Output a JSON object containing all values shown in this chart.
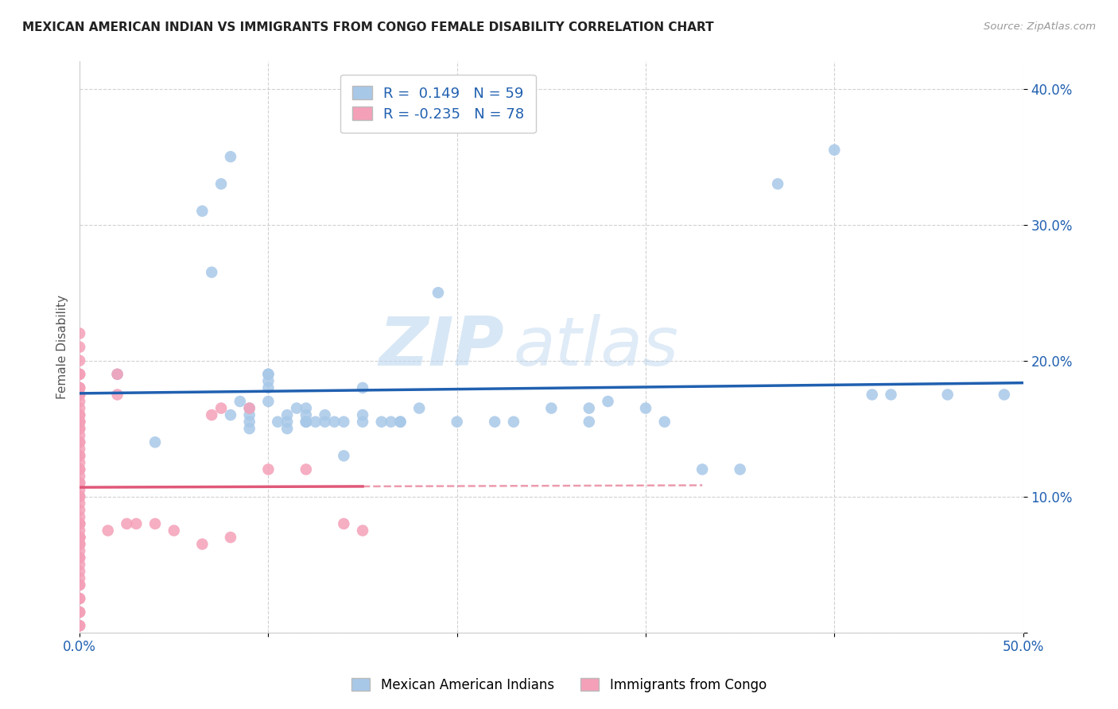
{
  "title": "MEXICAN AMERICAN INDIAN VS IMMIGRANTS FROM CONGO FEMALE DISABILITY CORRELATION CHART",
  "source": "Source: ZipAtlas.com",
  "ylabel": "Female Disability",
  "xlim": [
    0.0,
    0.5
  ],
  "ylim": [
    0.0,
    0.42
  ],
  "xticks": [
    0.0,
    0.1,
    0.2,
    0.3,
    0.4,
    0.5
  ],
  "yticks": [
    0.0,
    0.1,
    0.2,
    0.3,
    0.4
  ],
  "xtick_labels": [
    "0.0%",
    "",
    "",
    "",
    "",
    "50.0%"
  ],
  "ytick_labels_right": [
    "",
    "10.0%",
    "20.0%",
    "30.0%",
    "40.0%"
  ],
  "blue_R": 0.149,
  "blue_N": 59,
  "pink_R": -0.235,
  "pink_N": 78,
  "blue_color": "#a8c8e8",
  "pink_color": "#f4a0b8",
  "blue_line_color": "#2060b0",
  "pink_line_color": "#e05878",
  "pink_line_style": "solid",
  "watermark_zip": "ZIP",
  "watermark_atlas": "atlas",
  "legend_label_blue": "Mexican American Indians",
  "legend_label_pink": "Immigrants from Congo",
  "blue_scatter_x": [
    0.02,
    0.04,
    0.07,
    0.075,
    0.08,
    0.085,
    0.09,
    0.09,
    0.09,
    0.09,
    0.1,
    0.1,
    0.1,
    0.1,
    0.1,
    0.105,
    0.11,
    0.11,
    0.11,
    0.115,
    0.12,
    0.12,
    0.12,
    0.12,
    0.12,
    0.125,
    0.13,
    0.13,
    0.135,
    0.14,
    0.14,
    0.15,
    0.15,
    0.15,
    0.16,
    0.165,
    0.17,
    0.17,
    0.18,
    0.19,
    0.2,
    0.22,
    0.23,
    0.25,
    0.27,
    0.27,
    0.28,
    0.3,
    0.31,
    0.33,
    0.35,
    0.37,
    0.4,
    0.42,
    0.43,
    0.46,
    0.49,
    0.065,
    0.08
  ],
  "blue_scatter_y": [
    0.19,
    0.14,
    0.265,
    0.33,
    0.16,
    0.17,
    0.15,
    0.155,
    0.16,
    0.165,
    0.19,
    0.19,
    0.185,
    0.18,
    0.17,
    0.155,
    0.15,
    0.155,
    0.16,
    0.165,
    0.155,
    0.155,
    0.155,
    0.16,
    0.165,
    0.155,
    0.155,
    0.16,
    0.155,
    0.13,
    0.155,
    0.155,
    0.16,
    0.18,
    0.155,
    0.155,
    0.155,
    0.155,
    0.165,
    0.25,
    0.155,
    0.155,
    0.155,
    0.165,
    0.155,
    0.165,
    0.17,
    0.165,
    0.155,
    0.12,
    0.12,
    0.33,
    0.355,
    0.175,
    0.175,
    0.175,
    0.175,
    0.31,
    0.35
  ],
  "pink_scatter_x": [
    0.0,
    0.0,
    0.0,
    0.0,
    0.0,
    0.0,
    0.0,
    0.0,
    0.0,
    0.0,
    0.0,
    0.0,
    0.0,
    0.0,
    0.0,
    0.0,
    0.0,
    0.0,
    0.0,
    0.0,
    0.0,
    0.0,
    0.0,
    0.0,
    0.0,
    0.0,
    0.0,
    0.0,
    0.0,
    0.0,
    0.0,
    0.0,
    0.0,
    0.0,
    0.0,
    0.0,
    0.0,
    0.0,
    0.0,
    0.0,
    0.0,
    0.0,
    0.0,
    0.0,
    0.0,
    0.0,
    0.0,
    0.0,
    0.0,
    0.0,
    0.0,
    0.0,
    0.0,
    0.0,
    0.0,
    0.0,
    0.0,
    0.0,
    0.0,
    0.0,
    0.0,
    0.0,
    0.015,
    0.02,
    0.02,
    0.025,
    0.03,
    0.04,
    0.05,
    0.065,
    0.07,
    0.075,
    0.08,
    0.09,
    0.1,
    0.12,
    0.14,
    0.15
  ],
  "pink_scatter_y": [
    0.22,
    0.21,
    0.2,
    0.19,
    0.19,
    0.18,
    0.18,
    0.175,
    0.175,
    0.17,
    0.165,
    0.16,
    0.16,
    0.155,
    0.155,
    0.155,
    0.15,
    0.15,
    0.145,
    0.14,
    0.14,
    0.135,
    0.13,
    0.13,
    0.125,
    0.12,
    0.12,
    0.115,
    0.11,
    0.11,
    0.105,
    0.1,
    0.1,
    0.095,
    0.09,
    0.085,
    0.08,
    0.075,
    0.07,
    0.065,
    0.055,
    0.05,
    0.04,
    0.035,
    0.025,
    0.015,
    0.08,
    0.08,
    0.07,
    0.06,
    0.055,
    0.045,
    0.035,
    0.025,
    0.015,
    0.07,
    0.07,
    0.07,
    0.065,
    0.065,
    0.005,
    0.005,
    0.075,
    0.19,
    0.175,
    0.08,
    0.08,
    0.08,
    0.075,
    0.065,
    0.16,
    0.165,
    0.07,
    0.165,
    0.12,
    0.12,
    0.08,
    0.075
  ]
}
